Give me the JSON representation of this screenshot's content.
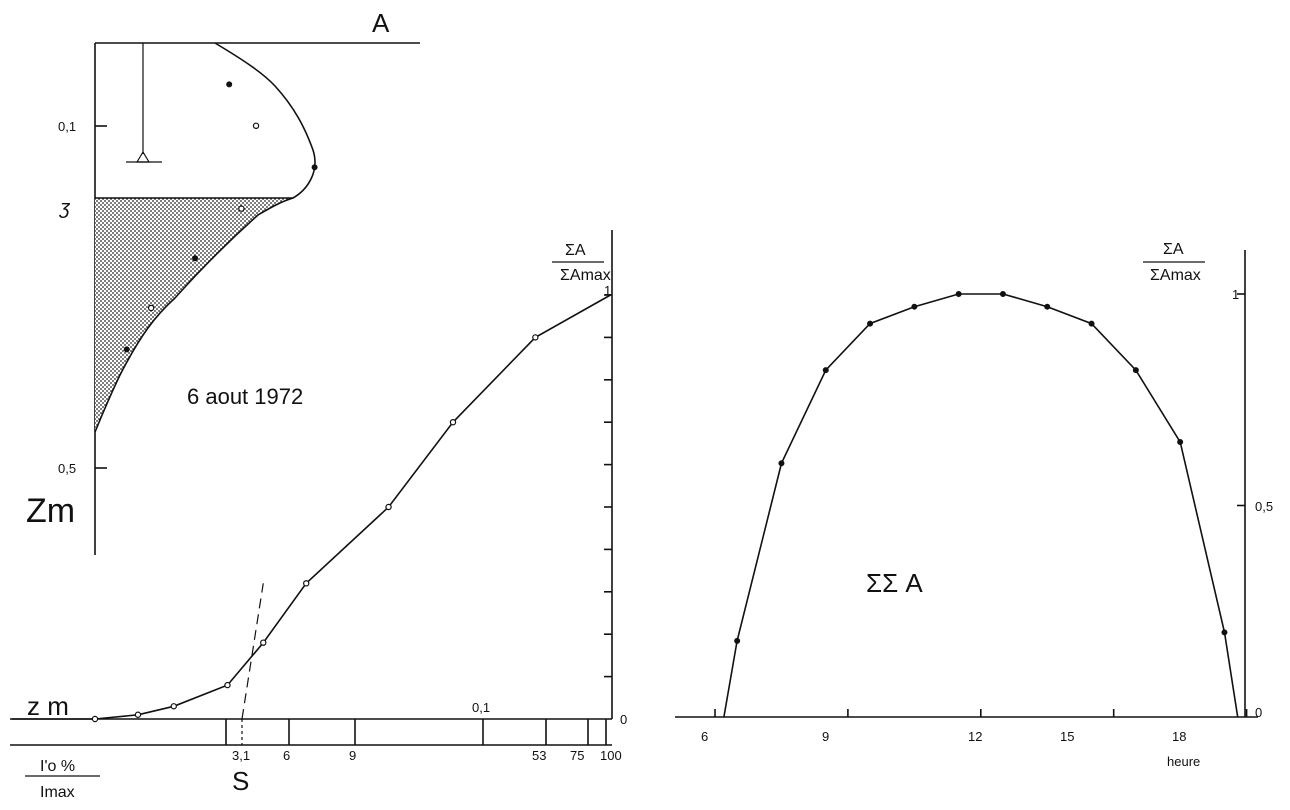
{
  "chart_data": [
    {
      "type": "line",
      "title": "",
      "xlabel": "A",
      "ylabel": "Zm",
      "special_labels": {
        "euphotic_marker": "ʒ"
      },
      "yticks": [
        "0,1",
        "0,5"
      ],
      "ylim": [
        0,
        0.6
      ],
      "x": [
        0.13,
        0.55,
        0.66,
        0.9,
        0.6,
        0.41,
        0.23,
        0.13,
        0.0
      ],
      "y": [
        0.0,
        0.05,
        0.1,
        0.15,
        0.2,
        0.26,
        0.32,
        0.37,
        0.47
      ],
      "shaded_region": "below z, between axis and curve"
    },
    {
      "type": "line",
      "title": "",
      "annotation": "6 aout 1972",
      "xlabel_line1": "I'o %",
      "xlabel_line2": "Imax",
      "y_axis_label_line1": "ΣA",
      "y_axis_label_line2": "ΣAmax",
      "left_label": "z m",
      "intercept_label": "S",
      "inner_label": "0,1",
      "xticks": [
        "3,1",
        "6",
        "9",
        "53",
        "75",
        "100"
      ],
      "yticks": [
        "0",
        "1"
      ],
      "ylim": [
        0,
        1
      ],
      "x": [
        0.0,
        0.12,
        0.22,
        0.37,
        0.47,
        0.59,
        0.82,
        1.0,
        1.23,
        1.44
      ],
      "y": [
        0.0,
        0.01,
        0.03,
        0.08,
        0.18,
        0.32,
        0.5,
        0.7,
        0.9,
        1.0
      ],
      "tangent_from": [
        0.22,
        0.0
      ],
      "tangent_to": [
        0.47,
        0.32
      ]
    },
    {
      "type": "line",
      "title": "",
      "annotation": "ΣΣ A",
      "xlabel": "heure",
      "y_axis_label_line1": "ΣA",
      "y_axis_label_line2": "ΣAmax",
      "xticks": [
        "6",
        "9",
        "12",
        "15",
        "18"
      ],
      "yticks": [
        "0",
        "0,5",
        "1"
      ],
      "xlim": [
        5.0,
        19.2
      ],
      "ylim": [
        0,
        1
      ],
      "x": [
        6.2,
        6.5,
        7.5,
        8.5,
        9.5,
        10.5,
        11.5,
        12.5,
        13.5,
        14.5,
        15.5,
        16.5,
        17.5,
        17.8
      ],
      "y": [
        0.0,
        0.18,
        0.6,
        0.82,
        0.93,
        0.97,
        1.0,
        1.0,
        0.97,
        0.93,
        0.82,
        0.65,
        0.2,
        0.0
      ]
    }
  ]
}
